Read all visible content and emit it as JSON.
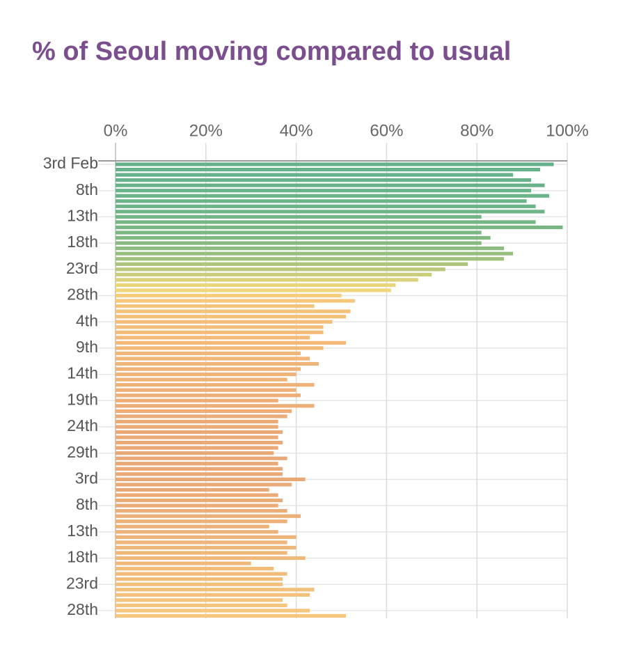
{
  "chart_data": {
    "type": "bar",
    "orientation": "horizontal",
    "title": "% of Seoul moving compared to usual",
    "categories": [
      "3rd Feb",
      null,
      null,
      null,
      null,
      "8th",
      null,
      null,
      null,
      null,
      "13th",
      null,
      null,
      null,
      null,
      "18th",
      null,
      null,
      null,
      null,
      "23rd",
      null,
      null,
      null,
      null,
      "28th",
      null,
      null,
      null,
      null,
      "4th",
      null,
      null,
      null,
      null,
      "9th",
      null,
      null,
      null,
      null,
      "14th",
      null,
      null,
      null,
      null,
      "19th",
      null,
      null,
      null,
      null,
      "24th",
      null,
      null,
      null,
      null,
      "29th",
      null,
      null,
      null,
      null,
      "3rd",
      null,
      null,
      null,
      null,
      "8th",
      null,
      null,
      null,
      null,
      "13th",
      null,
      null,
      null,
      null,
      "18th",
      null,
      null,
      null,
      null,
      "23rd",
      null,
      null,
      null,
      null,
      "28th",
      null
    ],
    "values": [
      97,
      94,
      88,
      92,
      95,
      92,
      96,
      91,
      93,
      95,
      81,
      93,
      99,
      81,
      83,
      81,
      86,
      88,
      86,
      78,
      73,
      70,
      67,
      62,
      61,
      50,
      53,
      44,
      52,
      51,
      48,
      46,
      46,
      43,
      51,
      46,
      41,
      43,
      45,
      41,
      40,
      38,
      44,
      40,
      41,
      36,
      44,
      39,
      38,
      36,
      36,
      37,
      36,
      37,
      36,
      35,
      38,
      36,
      37,
      37,
      42,
      39,
      34,
      36,
      37,
      36,
      38,
      41,
      38,
      34,
      36,
      40,
      38,
      40,
      38,
      42,
      30,
      35,
      38,
      37,
      37,
      44,
      43,
      37,
      38,
      43,
      51
    ],
    "colors": [
      "#66b08a",
      "#66b08a",
      "#67b18a",
      "#68b18a",
      "#69b289",
      "#6ab289",
      "#6bb389",
      "#6cb388",
      "#6db488",
      "#6fb487",
      "#72b586",
      "#75b685",
      "#78b784",
      "#7cb883",
      "#80b982",
      "#86ba81",
      "#8dbc80",
      "#96be7f",
      "#a1c17e",
      "#adc47c",
      "#bbc87b",
      "#cbcd7b",
      "#dbd27b",
      "#ead67c",
      "#f3d57d",
      "#f6cd7c",
      "#f6c77b",
      "#f5c47b",
      "#f5c27a",
      "#f5c07a",
      "#f4be7a",
      "#f4bd79",
      "#f3bb79",
      "#f3ba79",
      "#f2b979",
      "#f2b878",
      "#f1b778",
      "#f1b678",
      "#f0b578",
      "#f0b478",
      "#efb378",
      "#efb277",
      "#eeb177",
      "#eeb077",
      "#edaf77",
      "#edae77",
      "#ecad77",
      "#ecad77",
      "#ebac77",
      "#ebab77",
      "#ebab77",
      "#eaaa77",
      "#eaaa77",
      "#eaa977",
      "#eaa977",
      "#e9a977",
      "#e9a977",
      "#e9a977",
      "#e9a977",
      "#e9a977",
      "#e9a977",
      "#e9aa77",
      "#eaaa77",
      "#eaab77",
      "#eaac77",
      "#ebad78",
      "#ebae78",
      "#ecaf78",
      "#ecb078",
      "#edb178",
      "#edb279",
      "#eeb379",
      "#eeb479",
      "#efb679",
      "#efb779",
      "#f0b87a",
      "#f0b97a",
      "#f1bb7a",
      "#f1bc7a",
      "#f2bd7b",
      "#f2bf7b",
      "#f3c07b",
      "#f3c17c",
      "#f4c37c",
      "#f4c47c",
      "#f5c67d",
      "#f5c87d"
    ],
    "xlim": [
      0,
      100
    ],
    "xticks": [
      {
        "value": 0,
        "label": "0%"
      },
      {
        "value": 20,
        "label": "20%"
      },
      {
        "value": 40,
        "label": "40%"
      },
      {
        "value": 60,
        "label": "60%"
      },
      {
        "value": 80,
        "label": "80%"
      },
      {
        "value": 100,
        "label": "100%"
      }
    ],
    "grid": true
  }
}
